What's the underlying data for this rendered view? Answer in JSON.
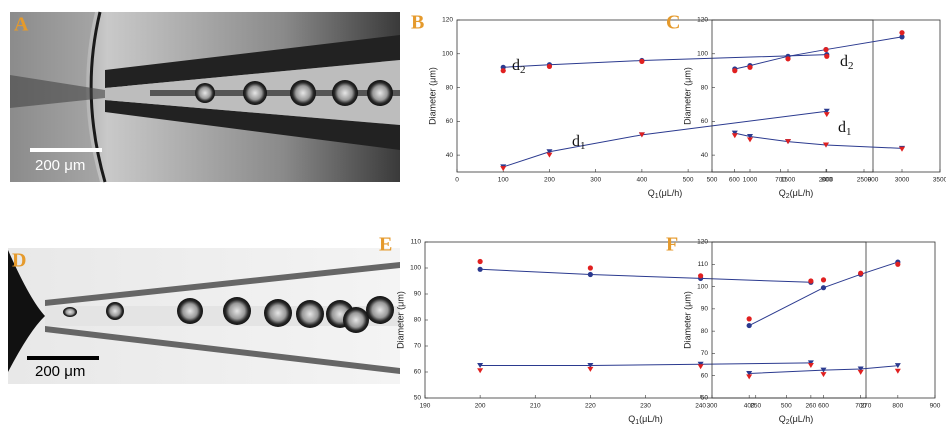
{
  "images": [
    {
      "label": "A",
      "scale": "200 μm"
    },
    {
      "label": "D",
      "scale": "200 μm"
    }
  ],
  "chart_data": [
    {
      "type": "scatter",
      "panel": "B",
      "ylabel": "Diameter (μm)",
      "xlabel": {
        "text": "Q",
        "sub": "1",
        "unit": "(μL/h)"
      },
      "xlim": [
        0,
        900
      ],
      "xticks": [
        0,
        100,
        200,
        300,
        400,
        500,
        600,
        700,
        800,
        900
      ],
      "ylim": [
        30,
        120
      ],
      "yticks": [
        40,
        60,
        80,
        100,
        120
      ],
      "x": [
        100,
        200,
        400,
        800
      ],
      "series": [
        {
          "color": "#2b3a8f",
          "marker": "circle",
          "line": true,
          "values": [
            92,
            93.5,
            96,
            99.5
          ]
        },
        {
          "color": "#e02020",
          "marker": "circle",
          "line": false,
          "values": [
            90,
            92.5,
            95.5,
            98.5
          ]
        },
        {
          "color": "#2b3a8f",
          "marker": "triangle",
          "line": true,
          "values": [
            33,
            42,
            52,
            66
          ]
        },
        {
          "color": "#e02020",
          "marker": "triangle",
          "line": false,
          "values": [
            32,
            40,
            52,
            64
          ]
        }
      ],
      "annotations": [
        {
          "text": "d",
          "sub": "2"
        },
        {
          "text": "d",
          "sub": "1"
        }
      ]
    },
    {
      "type": "scatter",
      "panel": "C",
      "ylabel": "Diameter (μm)",
      "xlabel": {
        "text": "Q",
        "sub": "2",
        "unit": "(μL/h)"
      },
      "xlim": [
        500,
        3500
      ],
      "xticks": [
        500,
        1000,
        1500,
        2000,
        2500,
        3000,
        3500
      ],
      "ylim": [
        30,
        120
      ],
      "yticks": [
        40,
        60,
        80,
        100,
        120
      ],
      "x": [
        800,
        1000,
        1500,
        2000,
        3000
      ],
      "series": [
        {
          "color": "#2b3a8f",
          "marker": "circle",
          "line": true,
          "values": [
            91,
            93,
            98.5,
            102.5,
            110
          ]
        },
        {
          "color": "#e02020",
          "marker": "circle",
          "line": false,
          "values": [
            90,
            92,
            97,
            102.5,
            112.5
          ]
        },
        {
          "color": "#2b3a8f",
          "marker": "triangle",
          "line": true,
          "values": [
            53,
            51,
            48,
            46,
            44
          ]
        },
        {
          "color": "#e02020",
          "marker": "triangle",
          "line": false,
          "values": [
            51.5,
            49,
            48,
            46,
            43.5
          ]
        }
      ],
      "annotations": [
        {
          "text": "d",
          "sub": "2"
        },
        {
          "text": "d",
          "sub": "1"
        }
      ]
    },
    {
      "type": "scatter",
      "panel": "E",
      "ylabel": "Diameter (μm)",
      "xlabel": {
        "text": "Q",
        "sub": "1",
        "unit": "(μL/h)"
      },
      "xlim": [
        190,
        270
      ],
      "xticks": [
        190,
        200,
        210,
        220,
        230,
        240,
        250,
        260,
        270
      ],
      "ylim": [
        50,
        110
      ],
      "yticks": [
        50,
        60,
        70,
        80,
        90,
        100,
        110
      ],
      "x": [
        200,
        220,
        240,
        260
      ],
      "series": [
        {
          "color": "#2b3a8f",
          "marker": "circle",
          "line": true,
          "values": [
            99.5,
            97.5,
            96,
            94.5
          ]
        },
        {
          "color": "#e02020",
          "marker": "circle",
          "line": false,
          "values": [
            102.5,
            100,
            97,
            95
          ]
        },
        {
          "color": "#2b3a8f",
          "marker": "triangle",
          "line": true,
          "values": [
            62.5,
            62.5,
            63,
            63.5
          ]
        },
        {
          "color": "#e02020",
          "marker": "triangle",
          "line": false,
          "values": [
            60.5,
            61,
            62,
            62.5
          ]
        }
      ],
      "annotations": []
    },
    {
      "type": "scatter",
      "panel": "F",
      "ylabel": "Diameter (μm)",
      "xlabel": {
        "text": "Q",
        "sub": "2",
        "unit": "(μL/h)"
      },
      "xlim": [
        300,
        900
      ],
      "xticks": [
        300,
        400,
        500,
        600,
        700,
        800,
        900
      ],
      "ylim": [
        50,
        120
      ],
      "yticks": [
        50,
        60,
        70,
        80,
        90,
        100,
        110,
        120
      ],
      "x": [
        400,
        600,
        700,
        800
      ],
      "series": [
        {
          "color": "#2b3a8f",
          "marker": "circle",
          "line": true,
          "values": [
            82.5,
            99.5,
            105.5,
            111
          ]
        },
        {
          "color": "#e02020",
          "marker": "circle",
          "line": false,
          "values": [
            85.5,
            103,
            106,
            110
          ]
        },
        {
          "color": "#2b3a8f",
          "marker": "triangle",
          "line": true,
          "values": [
            61,
            62.5,
            63,
            64.5
          ]
        },
        {
          "color": "#e02020",
          "marker": "triangle",
          "line": false,
          "values": [
            59.5,
            60.5,
            61.5,
            62
          ]
        }
      ],
      "annotations": []
    }
  ]
}
